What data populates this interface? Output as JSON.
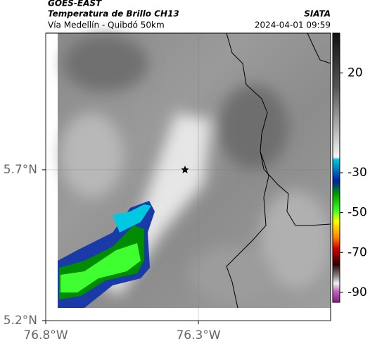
{
  "header": {
    "source": "GOES-EAST",
    "product": "Temperatura de Brillo CH13",
    "agency": "SIATA",
    "region": "Vía Medellín - Quibdó 50km",
    "datetime": "2024-04-01 09:59"
  },
  "map": {
    "xlim": [
      -76.8,
      -75.867
    ],
    "ylim": [
      5.2,
      6.153
    ],
    "xticks": [
      {
        "value": -76.8,
        "label": "76.8°W"
      },
      {
        "value": -76.3,
        "label": "76.3°W"
      }
    ],
    "yticks": [
      {
        "value": 5.2,
        "label": "5.2°N"
      },
      {
        "value": 5.7,
        "label": "5.7°N"
      }
    ]
  },
  "colorbar": {
    "range": [
      40,
      -95
    ],
    "ticks": [
      20,
      -30,
      -50,
      -70,
      -90
    ]
  }
}
